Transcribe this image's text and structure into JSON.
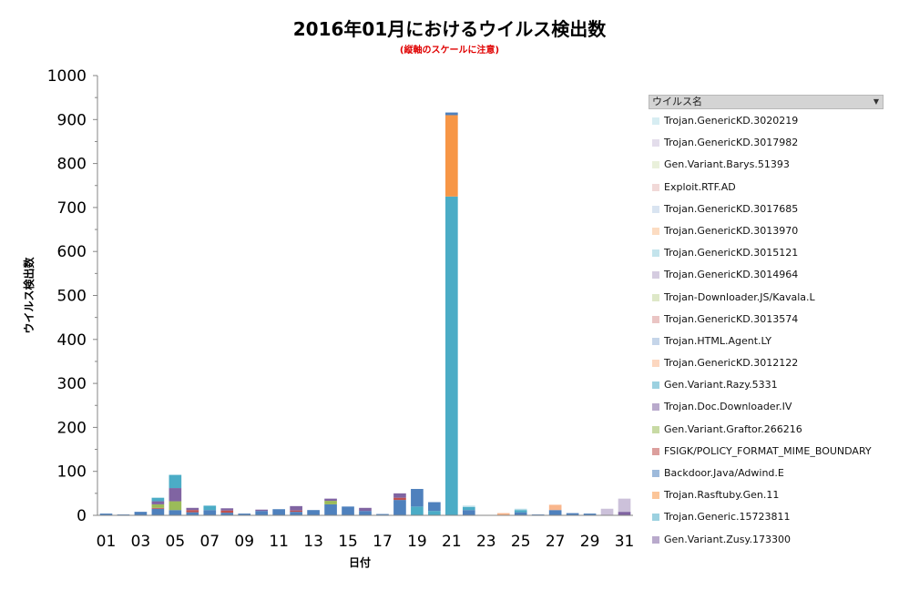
{
  "chart_data": {
    "type": "bar",
    "stacked": true,
    "title": "2016年01月におけるウイルス検出数",
    "subtitle": "(縦軸のスケールに注意)",
    "xlabel": "日付",
    "ylabel": "ウイルス検出数",
    "ylim": [
      0,
      1000
    ],
    "yticks": [
      0,
      100,
      200,
      300,
      400,
      500,
      600,
      700,
      800,
      900,
      1000
    ],
    "categories": [
      "01",
      "02",
      "03",
      "04",
      "05",
      "06",
      "07",
      "08",
      "09",
      "10",
      "11",
      "12",
      "13",
      "14",
      "15",
      "16",
      "17",
      "18",
      "19",
      "20",
      "21",
      "22",
      "23",
      "24",
      "25",
      "26",
      "27",
      "28",
      "29",
      "30",
      "31"
    ],
    "xtick_labels": [
      "01",
      "03",
      "05",
      "07",
      "09",
      "11",
      "13",
      "15",
      "17",
      "19",
      "21",
      "23",
      "25",
      "27",
      "29",
      "31"
    ],
    "legend_header": "ウイルス名",
    "legend": [
      "Trojan.GenericKD.3020219",
      "Trojan.GenericKD.3017982",
      "Gen.Variant.Barys.51393",
      "Exploit.RTF.AD",
      "Trojan.GenericKD.3017685",
      "Trojan.GenericKD.3013970",
      "Trojan.GenericKD.3015121",
      "Trojan.GenericKD.3014964",
      "Trojan-Downloader.JS/Kavala.L",
      "Trojan.GenericKD.3013574",
      "Trojan.HTML.Agent.LY",
      "Trojan.GenericKD.3012122",
      "Gen.Variant.Razy.5331",
      "Trojan.Doc.Downloader.IV",
      "Gen.Variant.Graftor.266216",
      "FSIGK/POLICY_FORMAT_MIME_BOUNDARY",
      "Backdoor.Java/Adwind.E",
      "Trojan.Rasftuby.Gen.11",
      "Trojan.Generic.15723811",
      "Gen.Variant.Zusy.173300"
    ],
    "series": [
      {
        "name": "Gen.Variant.Zusy.173300",
        "color": "#8064a2",
        "values": [
          0,
          0,
          0,
          0,
          0,
          0,
          0,
          0,
          0,
          0,
          0,
          0,
          0,
          0,
          0,
          0,
          0,
          0,
          0,
          0,
          0,
          0,
          0,
          0,
          0,
          0,
          0,
          0,
          0,
          0,
          8
        ]
      },
      {
        "name": "Trojan.Generic.15723811",
        "color": "#4bacc6",
        "values": [
          0,
          0,
          0,
          0,
          0,
          0,
          0,
          0,
          0,
          0,
          0,
          0,
          0,
          0,
          0,
          0,
          0,
          0,
          20,
          10,
          725,
          0,
          0,
          0,
          0,
          0,
          0,
          0,
          0,
          0,
          0
        ]
      },
      {
        "name": "Trojan.Rasftuby.Gen.11",
        "color": "#f79646",
        "values": [
          0,
          0,
          0,
          0,
          0,
          0,
          0,
          0,
          0,
          0,
          0,
          0,
          0,
          0,
          0,
          0,
          0,
          0,
          0,
          0,
          185,
          0,
          0,
          0,
          0,
          0,
          0,
          0,
          0,
          0,
          0
        ]
      },
      {
        "name": "Backdoor.Java/Adwind.E",
        "color": "#4f81bd",
        "values": [
          4,
          2,
          8,
          15,
          12,
          7,
          12,
          6,
          4,
          10,
          14,
          8,
          12,
          25,
          20,
          10,
          3,
          35,
          40,
          20,
          6,
          12,
          0,
          1,
          7,
          2,
          12,
          5,
          4,
          0,
          0
        ]
      },
      {
        "name": "FSIGK/POLICY_FORMAT_MIME_BOUNDARY",
        "color": "#c0504d",
        "values": [
          0,
          0,
          0,
          2,
          0,
          5,
          0,
          5,
          0,
          0,
          0,
          3,
          0,
          0,
          0,
          0,
          0,
          5,
          0,
          0,
          0,
          0,
          0,
          0,
          0,
          0,
          0,
          0,
          0,
          0,
          0
        ]
      },
      {
        "name": "Gen.Variant.Graftor.266216",
        "color": "#9bbb59",
        "values": [
          0,
          0,
          0,
          8,
          20,
          0,
          0,
          0,
          0,
          0,
          0,
          0,
          0,
          8,
          0,
          0,
          0,
          0,
          0,
          0,
          0,
          0,
          0,
          0,
          0,
          0,
          0,
          0,
          0,
          0,
          0
        ]
      },
      {
        "name": "Trojan.Doc.Downloader.IV",
        "color": "#8064a2",
        "values": [
          0,
          0,
          0,
          7,
          30,
          5,
          0,
          5,
          0,
          3,
          0,
          10,
          0,
          5,
          0,
          7,
          0,
          10,
          0,
          0,
          0,
          0,
          0,
          0,
          0,
          0,
          0,
          0,
          0,
          0,
          0
        ]
      },
      {
        "name": "Gen.Variant.Razy.5331",
        "color": "#4bacc6",
        "values": [
          0,
          0,
          0,
          8,
          30,
          0,
          10,
          0,
          0,
          0,
          0,
          0,
          0,
          0,
          0,
          0,
          0,
          0,
          0,
          0,
          0,
          7,
          0,
          0,
          5,
          0,
          0,
          0,
          0,
          0,
          0
        ]
      },
      {
        "name": "Trojan.GenericKD.3012122",
        "color": "#f9b68c",
        "values": [
          0,
          0,
          0,
          0,
          0,
          0,
          0,
          0,
          0,
          0,
          0,
          0,
          0,
          0,
          0,
          0,
          0,
          0,
          0,
          0,
          0,
          0,
          0,
          4,
          0,
          0,
          12,
          0,
          0,
          0,
          0
        ]
      },
      {
        "name": "Trojan.HTML.Agent.LY",
        "color": "#95b3d7",
        "values": [
          0,
          0,
          0,
          0,
          0,
          0,
          0,
          0,
          0,
          0,
          0,
          0,
          0,
          0,
          0,
          0,
          0,
          0,
          0,
          0,
          0,
          0,
          0,
          0,
          0,
          0,
          0,
          0,
          0,
          0,
          0
        ]
      },
      {
        "name": "Trojan.GenericKD.3013574",
        "color": "#d99694",
        "values": [
          0,
          0,
          0,
          0,
          0,
          0,
          0,
          0,
          0,
          0,
          0,
          0,
          0,
          0,
          0,
          0,
          0,
          0,
          0,
          0,
          0,
          0,
          0,
          0,
          0,
          0,
          0,
          0,
          0,
          0,
          0
        ]
      },
      {
        "name": "Trojan-Downloader.JS/Kavala.L",
        "color": "#c3d69b",
        "values": [
          0,
          0,
          0,
          0,
          0,
          0,
          0,
          0,
          0,
          0,
          0,
          0,
          0,
          0,
          0,
          0,
          0,
          0,
          0,
          0,
          0,
          0,
          0,
          0,
          0,
          0,
          0,
          0,
          0,
          0,
          0
        ]
      },
      {
        "name": "Trojan.GenericKD.3014964",
        "color": "#b3a2c7",
        "values": [
          0,
          0,
          0,
          0,
          0,
          0,
          0,
          0,
          0,
          0,
          0,
          0,
          0,
          0,
          0,
          0,
          0,
          0,
          0,
          0,
          0,
          0,
          0,
          0,
          0,
          0,
          0,
          0,
          0,
          0,
          0
        ]
      },
      {
        "name": "Trojan.GenericKD.3015121",
        "color": "#93cddd",
        "values": [
          0,
          0,
          0,
          0,
          0,
          0,
          0,
          0,
          0,
          0,
          0,
          0,
          0,
          0,
          0,
          0,
          0,
          0,
          0,
          0,
          0,
          0,
          0,
          0,
          0,
          0,
          0,
          0,
          0,
          0,
          0
        ]
      },
      {
        "name": "Trojan.GenericKD.3013970",
        "color": "#fac090",
        "values": [
          0,
          0,
          0,
          0,
          0,
          0,
          0,
          0,
          0,
          0,
          0,
          0,
          0,
          0,
          0,
          0,
          0,
          0,
          0,
          0,
          0,
          0,
          0,
          0,
          0,
          0,
          0,
          0,
          0,
          0,
          0
        ]
      },
      {
        "name": "Trojan.GenericKD.3017685",
        "color": "#b9cde5",
        "values": [
          0,
          0,
          0,
          0,
          0,
          0,
          0,
          0,
          0,
          0,
          0,
          0,
          0,
          0,
          0,
          0,
          0,
          0,
          0,
          0,
          0,
          0,
          0,
          0,
          0,
          0,
          0,
          0,
          0,
          0,
          0
        ]
      },
      {
        "name": "Exploit.RTF.AD",
        "color": "#e6b9b8",
        "values": [
          0,
          0,
          0,
          0,
          0,
          0,
          0,
          0,
          0,
          0,
          0,
          0,
          0,
          0,
          0,
          0,
          0,
          0,
          0,
          0,
          0,
          0,
          0,
          0,
          0,
          0,
          0,
          0,
          0,
          0,
          0
        ]
      },
      {
        "name": "Gen.Variant.Barys.51393",
        "color": "#d7e4bd",
        "values": [
          0,
          0,
          0,
          0,
          0,
          0,
          0,
          0,
          0,
          0,
          0,
          0,
          0,
          0,
          0,
          0,
          0,
          0,
          0,
          0,
          0,
          0,
          0,
          0,
          0,
          0,
          0,
          0,
          0,
          0,
          0
        ]
      },
      {
        "name": "Trojan.GenericKD.3017982",
        "color": "#ccc1da",
        "values": [
          0,
          0,
          0,
          0,
          0,
          0,
          0,
          0,
          0,
          0,
          0,
          0,
          0,
          0,
          0,
          0,
          0,
          0,
          0,
          0,
          0,
          0,
          0,
          0,
          0,
          0,
          0,
          0,
          0,
          15,
          30
        ]
      },
      {
        "name": "Trojan.GenericKD.3020219",
        "color": "#b7dee8",
        "values": [
          0,
          0,
          0,
          0,
          0,
          0,
          0,
          0,
          0,
          0,
          0,
          0,
          0,
          0,
          0,
          0,
          0,
          0,
          0,
          0,
          0,
          3,
          0,
          0,
          3,
          0,
          0,
          0,
          0,
          0,
          0
        ]
      }
    ]
  }
}
